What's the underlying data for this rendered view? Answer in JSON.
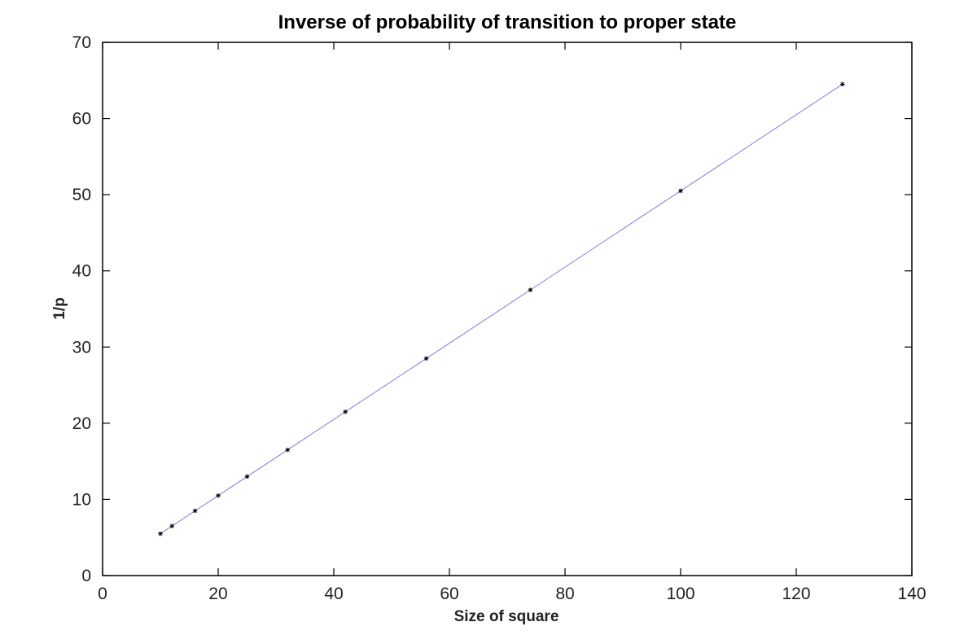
{
  "chart_data": {
    "type": "scatter",
    "title": "Inverse of probability of transition to proper state",
    "xlabel": "Size of square",
    "ylabel": "1/p",
    "xlim": [
      0,
      140
    ],
    "ylim": [
      0,
      70
    ],
    "x_ticks": [
      0,
      20,
      40,
      60,
      80,
      100,
      120,
      140
    ],
    "y_ticks": [
      0,
      10,
      20,
      30,
      40,
      50,
      60,
      70
    ],
    "x_tick_labels": [
      "0",
      "20",
      "40",
      "60",
      "80",
      "100",
      "120",
      "140"
    ],
    "y_tick_labels": [
      "0",
      "10",
      "20",
      "30",
      "40",
      "50",
      "60",
      "70"
    ],
    "grid": false,
    "series": [
      {
        "kind": "markers",
        "marker": "*",
        "color": "#000000",
        "x": [
          10,
          12,
          16,
          20,
          25,
          32,
          42,
          56,
          74,
          100,
          128
        ],
        "y": [
          5.5,
          6.5,
          8.5,
          10.5,
          13,
          16.5,
          21.5,
          28.5,
          37.5,
          50.5,
          64.5
        ]
      },
      {
        "kind": "line",
        "color": "#7b7bf2",
        "x": [
          10,
          128
        ],
        "y": [
          5.5,
          64.5
        ]
      }
    ]
  }
}
